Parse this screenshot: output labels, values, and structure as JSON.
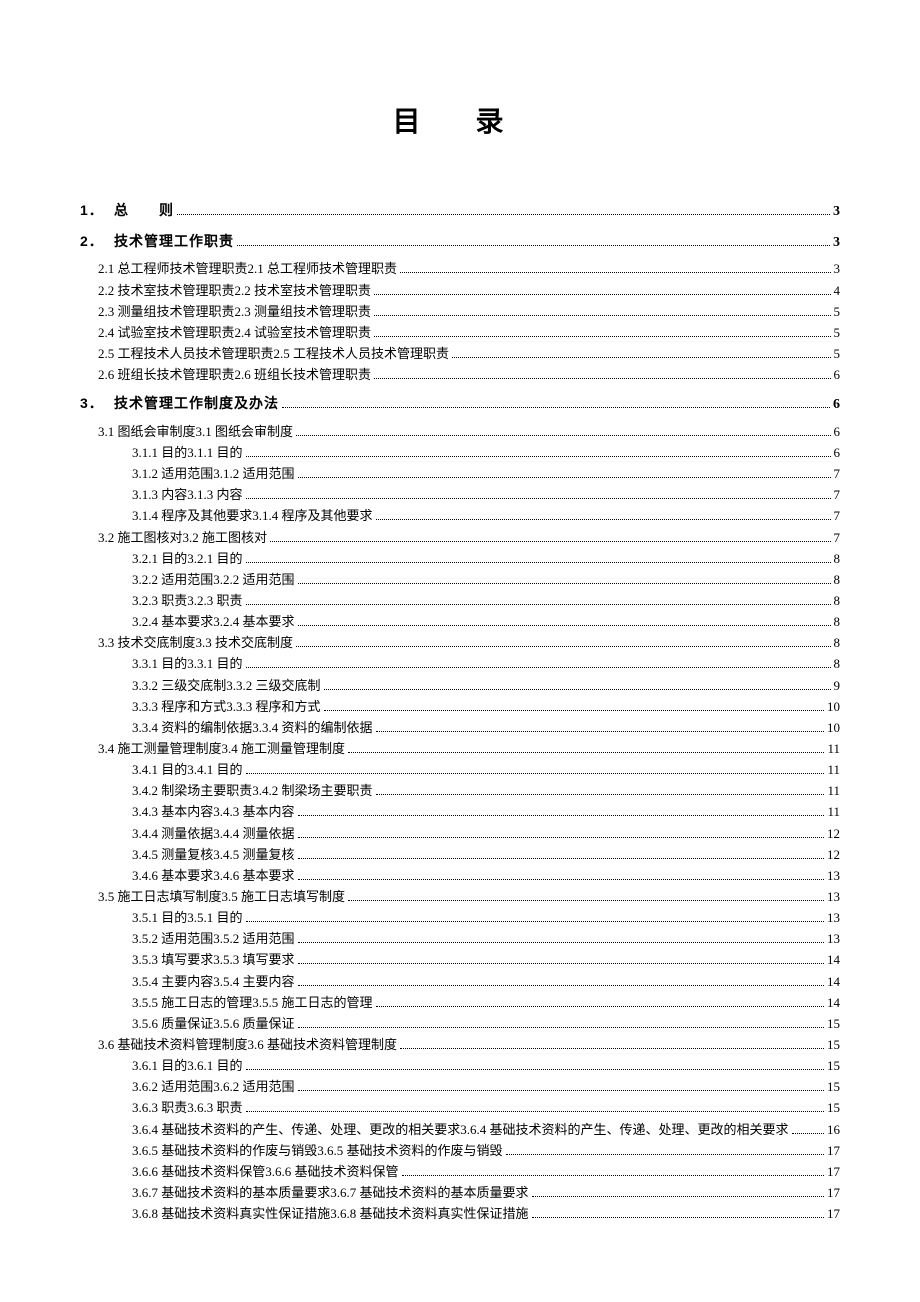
{
  "title": "目 录",
  "text_color": "#000000",
  "background_color": "#ffffff",
  "dot_color": "#000000",
  "font_family": "SimSun",
  "title_fontsize": 28,
  "body_fontsize": 13,
  "entries": [
    {
      "level": 1,
      "num": "1．",
      "label": "总　　则",
      "page": "3"
    },
    {
      "level": 1,
      "num": "2．",
      "label": "技术管理工作职责",
      "page": "3"
    },
    {
      "level": 2,
      "num": "2.1",
      "label": "总工程师技术管理职责",
      "page": "3"
    },
    {
      "level": 2,
      "num": "2.2",
      "label": "技术室技术管理职责",
      "page": "4"
    },
    {
      "level": 2,
      "num": "2.3",
      "label": "测量组技术管理职责",
      "page": "5"
    },
    {
      "level": 2,
      "num": "2.4",
      "label": "试验室技术管理职责",
      "page": "5"
    },
    {
      "level": 2,
      "num": "2.5",
      "label": "工程技术人员技术管理职责",
      "page": "5"
    },
    {
      "level": 2,
      "num": "2.6",
      "label": "班组长技术管理职责",
      "page": "6"
    },
    {
      "level": 1,
      "num": "3．",
      "label": "技术管理工作制度及办法",
      "page": "6"
    },
    {
      "level": 2,
      "num": "3.1",
      "label": "图纸会审制度",
      "page": "6"
    },
    {
      "level": 3,
      "num": "3.1.1",
      "label": "目的",
      "page": "6"
    },
    {
      "level": 3,
      "num": "3.1.2",
      "label": "适用范围",
      "page": "7"
    },
    {
      "level": 3,
      "num": "3.1.3",
      "label": "内容",
      "page": "7"
    },
    {
      "level": 3,
      "num": "3.1.4",
      "label": "程序及其他要求",
      "page": "7"
    },
    {
      "level": 2,
      "num": "3.2",
      "label": "施工图核对",
      "page": "7"
    },
    {
      "level": 3,
      "num": "3.2.1",
      "label": "目的",
      "page": "8"
    },
    {
      "level": 3,
      "num": "3.2.2",
      "label": "适用范围",
      "page": "8"
    },
    {
      "level": 3,
      "num": "3.2.3",
      "label": "职责",
      "page": "8"
    },
    {
      "level": 3,
      "num": "3.2.4",
      "label": "基本要求",
      "page": "8"
    },
    {
      "level": 2,
      "num": "3.3",
      "label": "技术交底制度",
      "page": "8"
    },
    {
      "level": 3,
      "num": "3.3.1",
      "label": "目的",
      "page": "8"
    },
    {
      "level": 3,
      "num": "3.3.2",
      "label": "三级交底制",
      "page": "9"
    },
    {
      "level": 3,
      "num": "3.3.3",
      "label": "程序和方式",
      "page": "10"
    },
    {
      "level": 3,
      "num": "3.3.4",
      "label": "资料的编制依据",
      "page": "10"
    },
    {
      "level": 2,
      "num": "3.4",
      "label": "施工测量管理制度",
      "page": "11"
    },
    {
      "level": 3,
      "num": "3.4.1",
      "label": "目的",
      "page": "11"
    },
    {
      "level": 3,
      "num": "3.4.2",
      "label": "制梁场主要职责",
      "page": "11"
    },
    {
      "level": 3,
      "num": "3.4.3",
      "label": "基本内容",
      "page": "11"
    },
    {
      "level": 3,
      "num": "3.4.4",
      "label": "测量依据",
      "page": "12"
    },
    {
      "level": 3,
      "num": "3.4.5",
      "label": "测量复核",
      "page": "12"
    },
    {
      "level": 3,
      "num": "3.4.6",
      "label": "基本要求",
      "page": "13"
    },
    {
      "level": 2,
      "num": "3.5",
      "label": "施工日志填写制度",
      "page": "13"
    },
    {
      "level": 3,
      "num": "3.5.1",
      "label": "目的",
      "page": "13"
    },
    {
      "level": 3,
      "num": "3.5.2",
      "label": "适用范围",
      "page": "13"
    },
    {
      "level": 3,
      "num": "3.5.3",
      "label": "填写要求",
      "page": "14"
    },
    {
      "level": 3,
      "num": "3.5.4",
      "label": "主要内容",
      "page": "14"
    },
    {
      "level": 3,
      "num": "3.5.5",
      "label": "施工日志的管理",
      "page": "14"
    },
    {
      "level": 3,
      "num": "3.5.6",
      "label": "质量保证",
      "page": "15"
    },
    {
      "level": 2,
      "num": "3.6",
      "label": "基础技术资料管理制度",
      "page": "15"
    },
    {
      "level": 3,
      "num": "3.6.1",
      "label": "目的",
      "page": "15"
    },
    {
      "level": 3,
      "num": "3.6.2",
      "label": "适用范围",
      "page": "15"
    },
    {
      "level": 3,
      "num": "3.6.3",
      "label": "职责",
      "page": "15"
    },
    {
      "level": 3,
      "num": "3.6.4",
      "label": "基础技术资料的产生、传递、处理、更改的相关要求",
      "page": "16"
    },
    {
      "level": 3,
      "num": "3.6.5",
      "label": "基础技术资料的作废与销毁",
      "page": "17"
    },
    {
      "level": 3,
      "num": "3.6.6",
      "label": "基础技术资料保管",
      "page": "17"
    },
    {
      "level": 3,
      "num": "3.6.7",
      "label": "基础技术资料的基本质量要求",
      "page": "17"
    },
    {
      "level": 3,
      "num": "3.6.8",
      "label": "基础技术资料真实性保证措施",
      "page": "17"
    }
  ]
}
